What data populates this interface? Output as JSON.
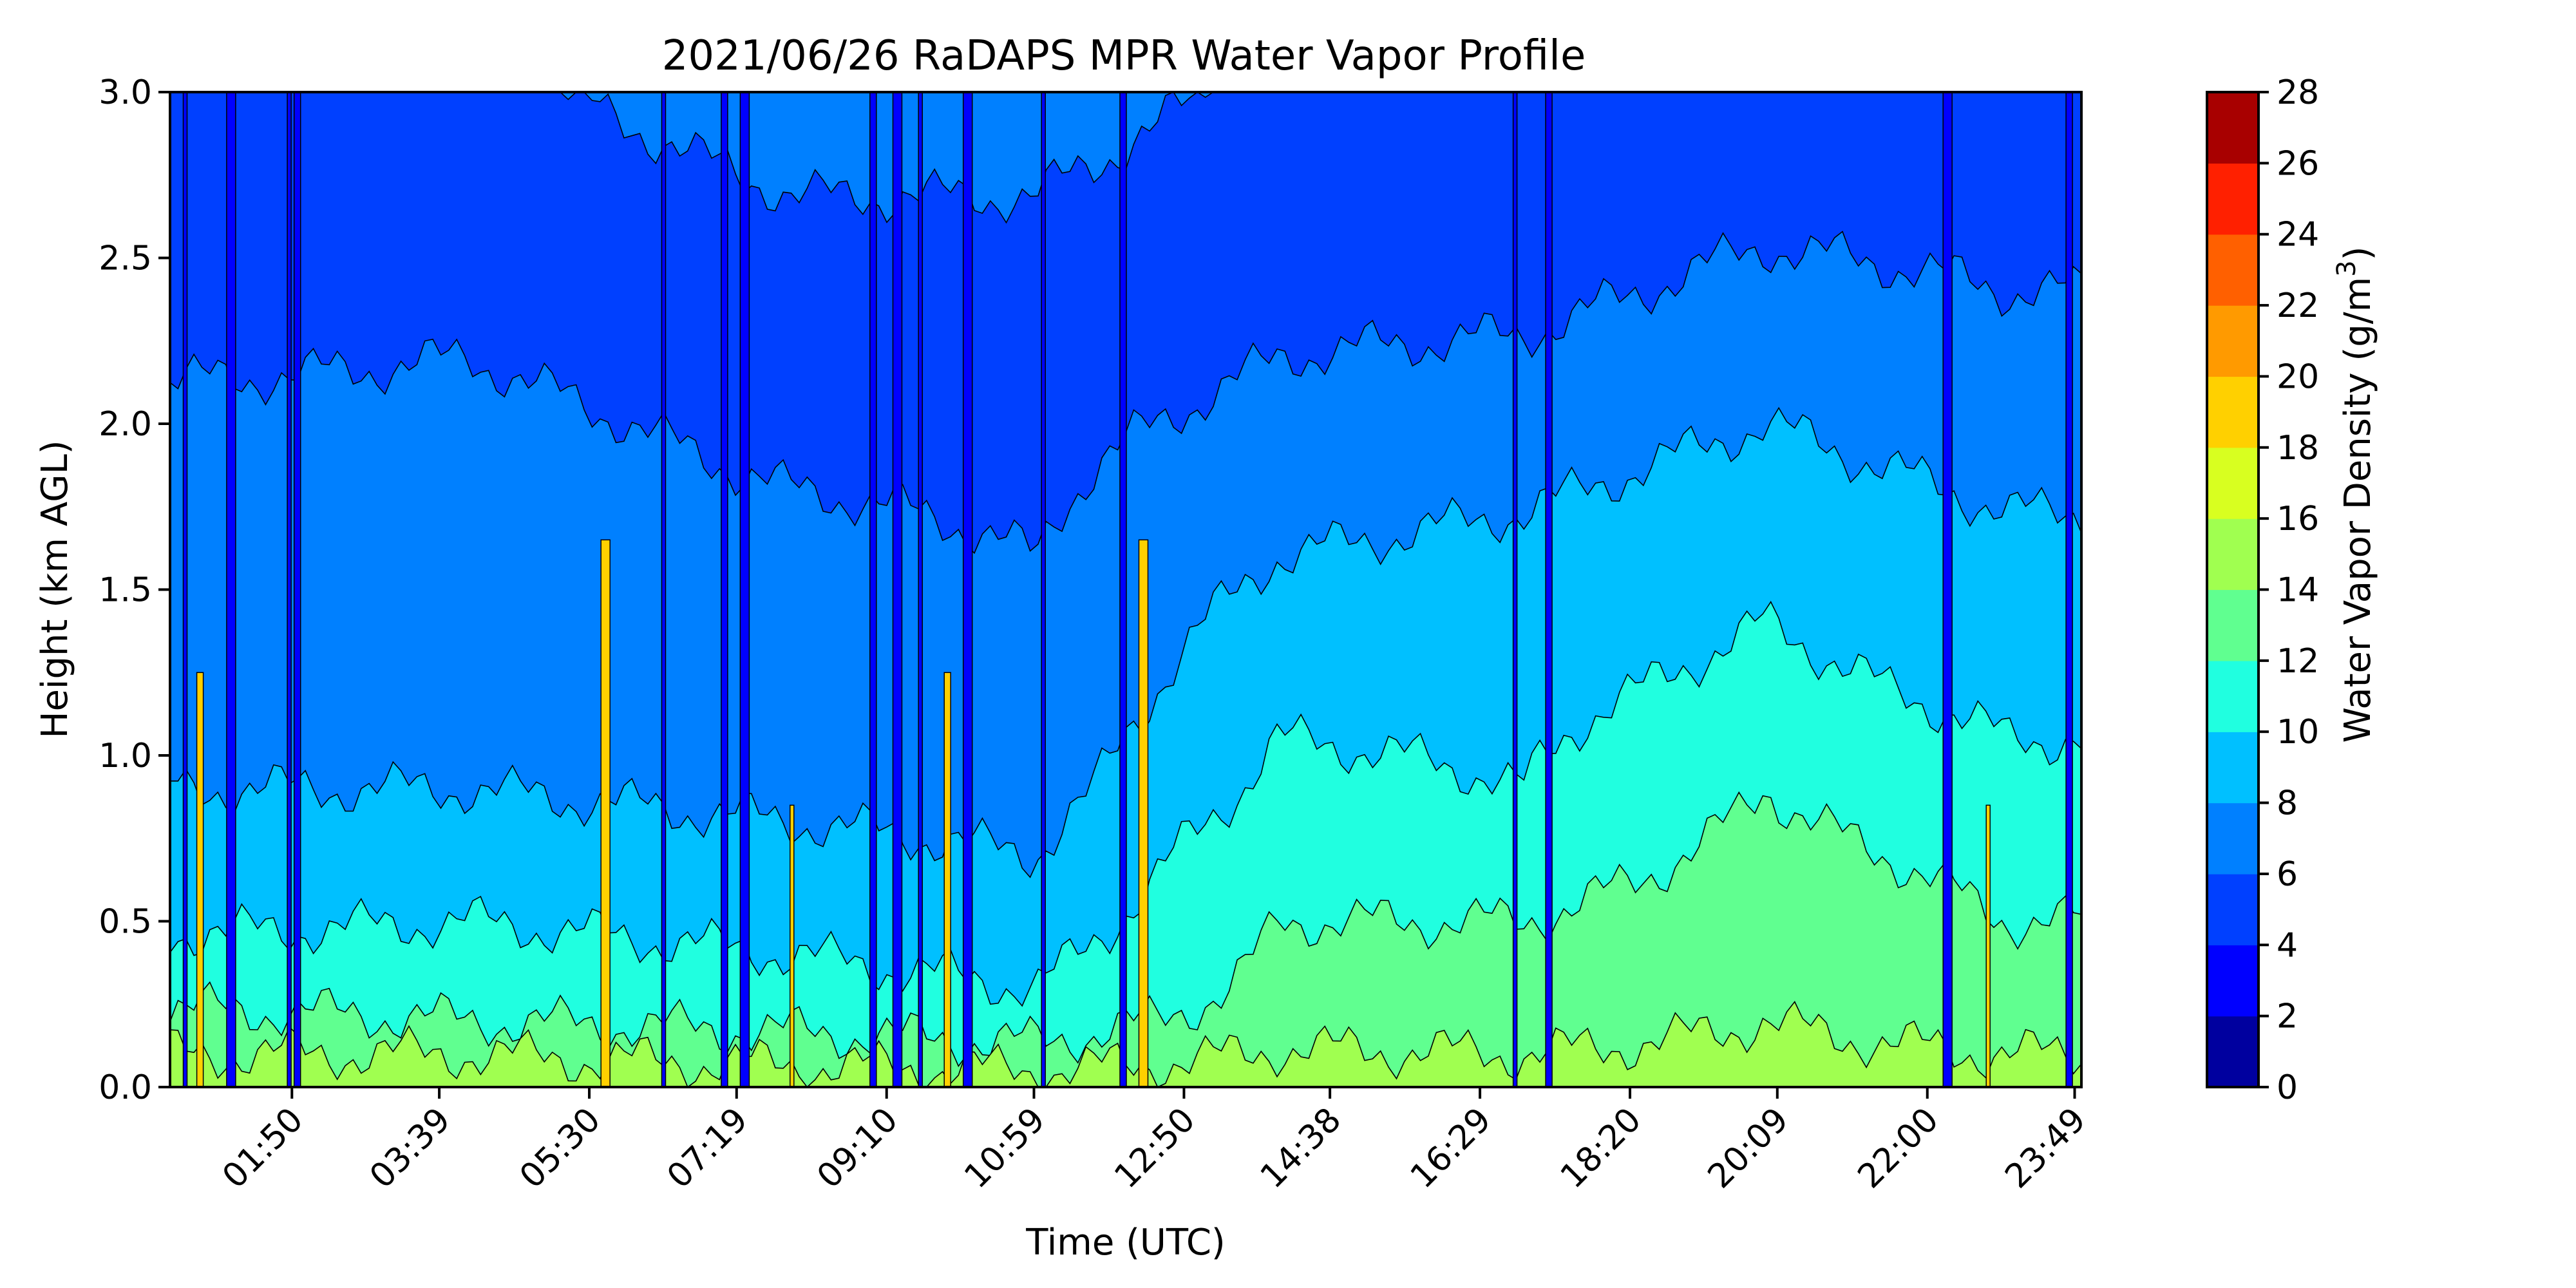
{
  "chart_data": {
    "type": "heatmap",
    "title": "2021/06/26 RaDAPS MPR Water Vapor Profile",
    "xlabel": "Time (UTC)",
    "ylabel": "Height (km AGL)",
    "colorbar_label": "Water Vapor Density (g/m",
    "colorbar_label_sup": "3",
    "colorbar_label_end": ")",
    "xlim_hours": [
      0.33,
      23.9
    ],
    "x_ticks": [
      "01:50",
      "03:39",
      "05:30",
      "07:19",
      "09:10",
      "10:59",
      "12:50",
      "14:38",
      "16:29",
      "18:20",
      "20:09",
      "22:00",
      "23:49"
    ],
    "ylim": [
      0,
      3
    ],
    "y_ticks": [
      "0.0",
      "0.5",
      "1.0",
      "1.5",
      "2.0",
      "2.5",
      "3.0"
    ],
    "levels": [
      0,
      2,
      4,
      6,
      8,
      10,
      12,
      14,
      16,
      18,
      20,
      22,
      24,
      26,
      28
    ],
    "level_colors": [
      "#00009f",
      "#0000ff",
      "#0040ff",
      "#0080ff",
      "#00c0ff",
      "#20ffe0",
      "#60ff90",
      "#a0ff50",
      "#d8ff20",
      "#ffd000",
      "#ff9a00",
      "#ff6000",
      "#ff2000",
      "#a80000"
    ],
    "profile_height_km": [
      0.0,
      0.05,
      0.1,
      0.2,
      0.3,
      0.5,
      0.7,
      0.9,
      1.2,
      1.6,
      2.0,
      2.4,
      2.8,
      3.0
    ],
    "profile_times": [
      "01:00",
      "04:00",
      "08:00",
      "11:00",
      "14:00",
      "17:00",
      "20:00",
      "23:00"
    ],
    "profile_values": [
      [
        15.5,
        15.0,
        14.0,
        12.5,
        11.0,
        9.8,
        8.8,
        8.0,
        7.5,
        7.0,
        6.5,
        5.0,
        4.5,
        4.2
      ],
      [
        16.0,
        15.0,
        14.0,
        12.0,
        11.0,
        10.0,
        9.0,
        8.0,
        7.5,
        7.2,
        6.5,
        5.5,
        4.5,
        4.2
      ],
      [
        15.5,
        14.5,
        13.0,
        11.5,
        10.5,
        9.5,
        8.5,
        7.5,
        7.0,
        6.5,
        5.5,
        4.5,
        3.8,
        3.5
      ],
      [
        15.0,
        14.0,
        12.5,
        11.0,
        10.0,
        9.0,
        8.0,
        7.2,
        6.5,
        6.0,
        5.5,
        4.5,
        3.8,
        3.5
      ],
      [
        15.5,
        15.0,
        14.2,
        13.0,
        12.5,
        12.0,
        11.5,
        10.5,
        9.5,
        8.0,
        6.5,
        5.5,
        4.5,
        4.2
      ],
      [
        16.0,
        15.0,
        14.0,
        13.0,
        12.5,
        12.0,
        11.0,
        10.0,
        9.5,
        8.5,
        7.0,
        5.5,
        4.5,
        4.2
      ],
      [
        16.0,
        15.0,
        14.5,
        14.0,
        13.5,
        13.0,
        12.5,
        12.0,
        10.5,
        9.5,
        8.0,
        6.5,
        5.0,
        4.5
      ],
      [
        16.0,
        15.0,
        14.0,
        13.0,
        12.5,
        12.0,
        11.5,
        10.5,
        9.5,
        8.5,
        7.0,
        6.0,
        5.0,
        4.5
      ]
    ],
    "colorbar_ticks": [
      "0",
      "2",
      "4",
      "6",
      "8",
      "10",
      "12",
      "14",
      "16",
      "18",
      "20",
      "22",
      "24",
      "26",
      "28"
    ]
  }
}
